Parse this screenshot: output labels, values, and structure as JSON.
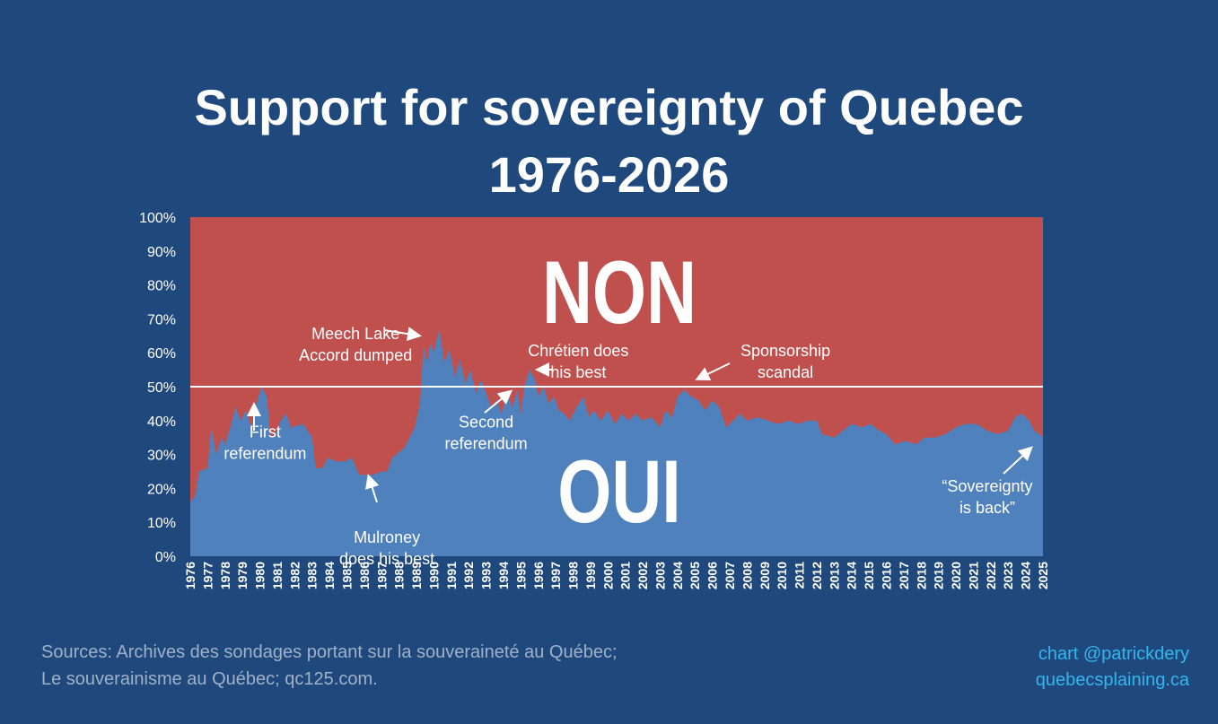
{
  "title_line1": "Support for sovereignty of Quebec",
  "title_line2": "1976-2026",
  "sources": [
    "Sources: Archives des sondages portant sur la souveraineté au Québec;",
    "Le souverainisme au Québec; qc125.com."
  ],
  "credit": [
    "chart @patrickdery",
    "quebecsplaining.ca"
  ],
  "colors": {
    "background": "#1f497d",
    "oui": "#4f81bd",
    "non": "#c0504d",
    "text": "#ffffff",
    "credit": "#35b5ee"
  },
  "chart_data": {
    "type": "area",
    "ylim": [
      0,
      100
    ],
    "y_ticks": [
      "0%",
      "10%",
      "20%",
      "30%",
      "40%",
      "50%",
      "60%",
      "70%",
      "80%",
      "90%",
      "100%"
    ],
    "x_ticks": [
      "1976",
      "1977",
      "1978",
      "1979",
      "1980",
      "1981",
      "1982",
      "1983",
      "1984",
      "1985",
      "1986",
      "1987",
      "1988",
      "1989",
      "1990",
      "1991",
      "1992",
      "1993",
      "1994",
      "1995",
      "1996",
      "1997",
      "1998",
      "1999",
      "2000",
      "2001",
      "2002",
      "2003",
      "2004",
      "2005",
      "2006",
      "2007",
      "2008",
      "2009",
      "2010",
      "2011",
      "2012",
      "2013",
      "2014",
      "2015",
      "2016",
      "2017",
      "2018",
      "2019",
      "2020",
      "2021",
      "2022",
      "2023",
      "2024",
      "2025"
    ],
    "reference_line": 50,
    "region_labels": {
      "top": "NON",
      "bottom": "OUI"
    },
    "series": [
      {
        "name": "OUI",
        "color": "#4f81bd",
        "points": [
          [
            1976.0,
            16
          ],
          [
            1976.3,
            18
          ],
          [
            1976.5,
            25
          ],
          [
            1977.0,
            26
          ],
          [
            1977.2,
            38
          ],
          [
            1977.5,
            30
          ],
          [
            1977.8,
            35
          ],
          [
            1978.0,
            33
          ],
          [
            1978.3,
            38
          ],
          [
            1978.6,
            44
          ],
          [
            1978.9,
            40
          ],
          [
            1979.2,
            43
          ],
          [
            1979.5,
            38
          ],
          [
            1979.8,
            45
          ],
          [
            1980.1,
            50
          ],
          [
            1980.4,
            47
          ],
          [
            1980.6,
            35
          ],
          [
            1980.9,
            36
          ],
          [
            1981.2,
            40
          ],
          [
            1981.5,
            42
          ],
          [
            1981.8,
            38
          ],
          [
            1982.5,
            39
          ],
          [
            1983.0,
            35
          ],
          [
            1983.2,
            26
          ],
          [
            1983.6,
            26
          ],
          [
            1983.9,
            29
          ],
          [
            1984.4,
            28
          ],
          [
            1984.9,
            28
          ],
          [
            1985.3,
            29
          ],
          [
            1985.7,
            24
          ],
          [
            1986.5,
            24
          ],
          [
            1987.0,
            25
          ],
          [
            1987.3,
            25
          ],
          [
            1987.6,
            29
          ],
          [
            1988.3,
            32
          ],
          [
            1988.9,
            38
          ],
          [
            1989.2,
            45
          ],
          [
            1989.4,
            62
          ],
          [
            1989.6,
            57
          ],
          [
            1989.8,
            63
          ],
          [
            1990.0,
            60
          ],
          [
            1990.3,
            67
          ],
          [
            1990.6,
            57
          ],
          [
            1990.9,
            61
          ],
          [
            1991.2,
            53
          ],
          [
            1991.5,
            58
          ],
          [
            1991.8,
            51
          ],
          [
            1992.1,
            55
          ],
          [
            1992.4,
            48
          ],
          [
            1992.7,
            52
          ],
          [
            1993.0,
            48
          ],
          [
            1993.3,
            44
          ],
          [
            1993.6,
            46
          ],
          [
            1993.9,
            42
          ],
          [
            1994.2,
            48
          ],
          [
            1994.5,
            44
          ],
          [
            1994.8,
            49
          ],
          [
            1995.0,
            42
          ],
          [
            1995.2,
            50
          ],
          [
            1995.5,
            55
          ],
          [
            1995.8,
            52
          ],
          [
            1996.0,
            47
          ],
          [
            1996.3,
            50
          ],
          [
            1996.6,
            45
          ],
          [
            1996.9,
            47
          ],
          [
            1997.2,
            43
          ],
          [
            1997.5,
            42
          ],
          [
            1997.8,
            40
          ],
          [
            1998.2,
            44
          ],
          [
            1998.6,
            47
          ],
          [
            1998.9,
            41
          ],
          [
            1999.2,
            43
          ],
          [
            1999.6,
            40
          ],
          [
            2000.0,
            43
          ],
          [
            2000.4,
            39
          ],
          [
            2000.8,
            42
          ],
          [
            2001.2,
            40
          ],
          [
            2001.6,
            42
          ],
          [
            2002.0,
            40
          ],
          [
            2002.5,
            41
          ],
          [
            2003.0,
            38
          ],
          [
            2003.3,
            43
          ],
          [
            2003.7,
            41
          ],
          [
            2004.0,
            47
          ],
          [
            2004.4,
            49
          ],
          [
            2004.8,
            47
          ],
          [
            2005.2,
            46
          ],
          [
            2005.6,
            43
          ],
          [
            2006.0,
            46
          ],
          [
            2006.4,
            44
          ],
          [
            2006.8,
            38
          ],
          [
            2007.2,
            40
          ],
          [
            2007.6,
            42
          ],
          [
            2008.0,
            40
          ],
          [
            2008.6,
            41
          ],
          [
            2009.2,
            40
          ],
          [
            2009.8,
            39
          ],
          [
            2010.4,
            40
          ],
          [
            2010.9,
            39
          ],
          [
            2011.5,
            40
          ],
          [
            2012.0,
            40
          ],
          [
            2012.3,
            36
          ],
          [
            2013.0,
            35
          ],
          [
            2013.5,
            37
          ],
          [
            2014.0,
            39
          ],
          [
            2014.6,
            38
          ],
          [
            2015.1,
            39
          ],
          [
            2015.6,
            37
          ],
          [
            2016.0,
            36
          ],
          [
            2016.5,
            33
          ],
          [
            2017.1,
            34
          ],
          [
            2017.7,
            33
          ],
          [
            2018.2,
            35
          ],
          [
            2018.8,
            35
          ],
          [
            2019.4,
            36
          ],
          [
            2020.0,
            38
          ],
          [
            2020.5,
            39
          ],
          [
            2021.2,
            39
          ],
          [
            2021.8,
            37
          ],
          [
            2022.4,
            36
          ],
          [
            2023.0,
            37
          ],
          [
            2023.4,
            41
          ],
          [
            2023.8,
            42
          ],
          [
            2024.2,
            40
          ],
          [
            2024.5,
            37
          ],
          [
            2024.8,
            36
          ],
          [
            2025.0,
            35
          ]
        ]
      },
      {
        "name": "NON",
        "color": "#c0504d",
        "fill_to": 100
      }
    ],
    "annotations": [
      {
        "lines": [
          "First",
          "referendum"
        ],
        "x": 1980.3,
        "y": 35
      },
      {
        "lines": [
          "Mulroney",
          "does his best"
        ],
        "x": 1987.3,
        "y": 4
      },
      {
        "lines": [
          "Meech Lake",
          "Accord dumped"
        ],
        "x": 1985.5,
        "y": 64
      },
      {
        "lines": [
          "Second",
          "referendum"
        ],
        "x": 1993.0,
        "y": 38
      },
      {
        "lines": [
          "Chrétien does",
          "his best"
        ],
        "x": 1998.3,
        "y": 59
      },
      {
        "lines": [
          "Sponsorship",
          "scandal"
        ],
        "x": 2010.2,
        "y": 59
      },
      {
        "lines": [
          "“Sovereignty",
          "is back”"
        ],
        "x": 2021.8,
        "y": 19
      }
    ]
  }
}
